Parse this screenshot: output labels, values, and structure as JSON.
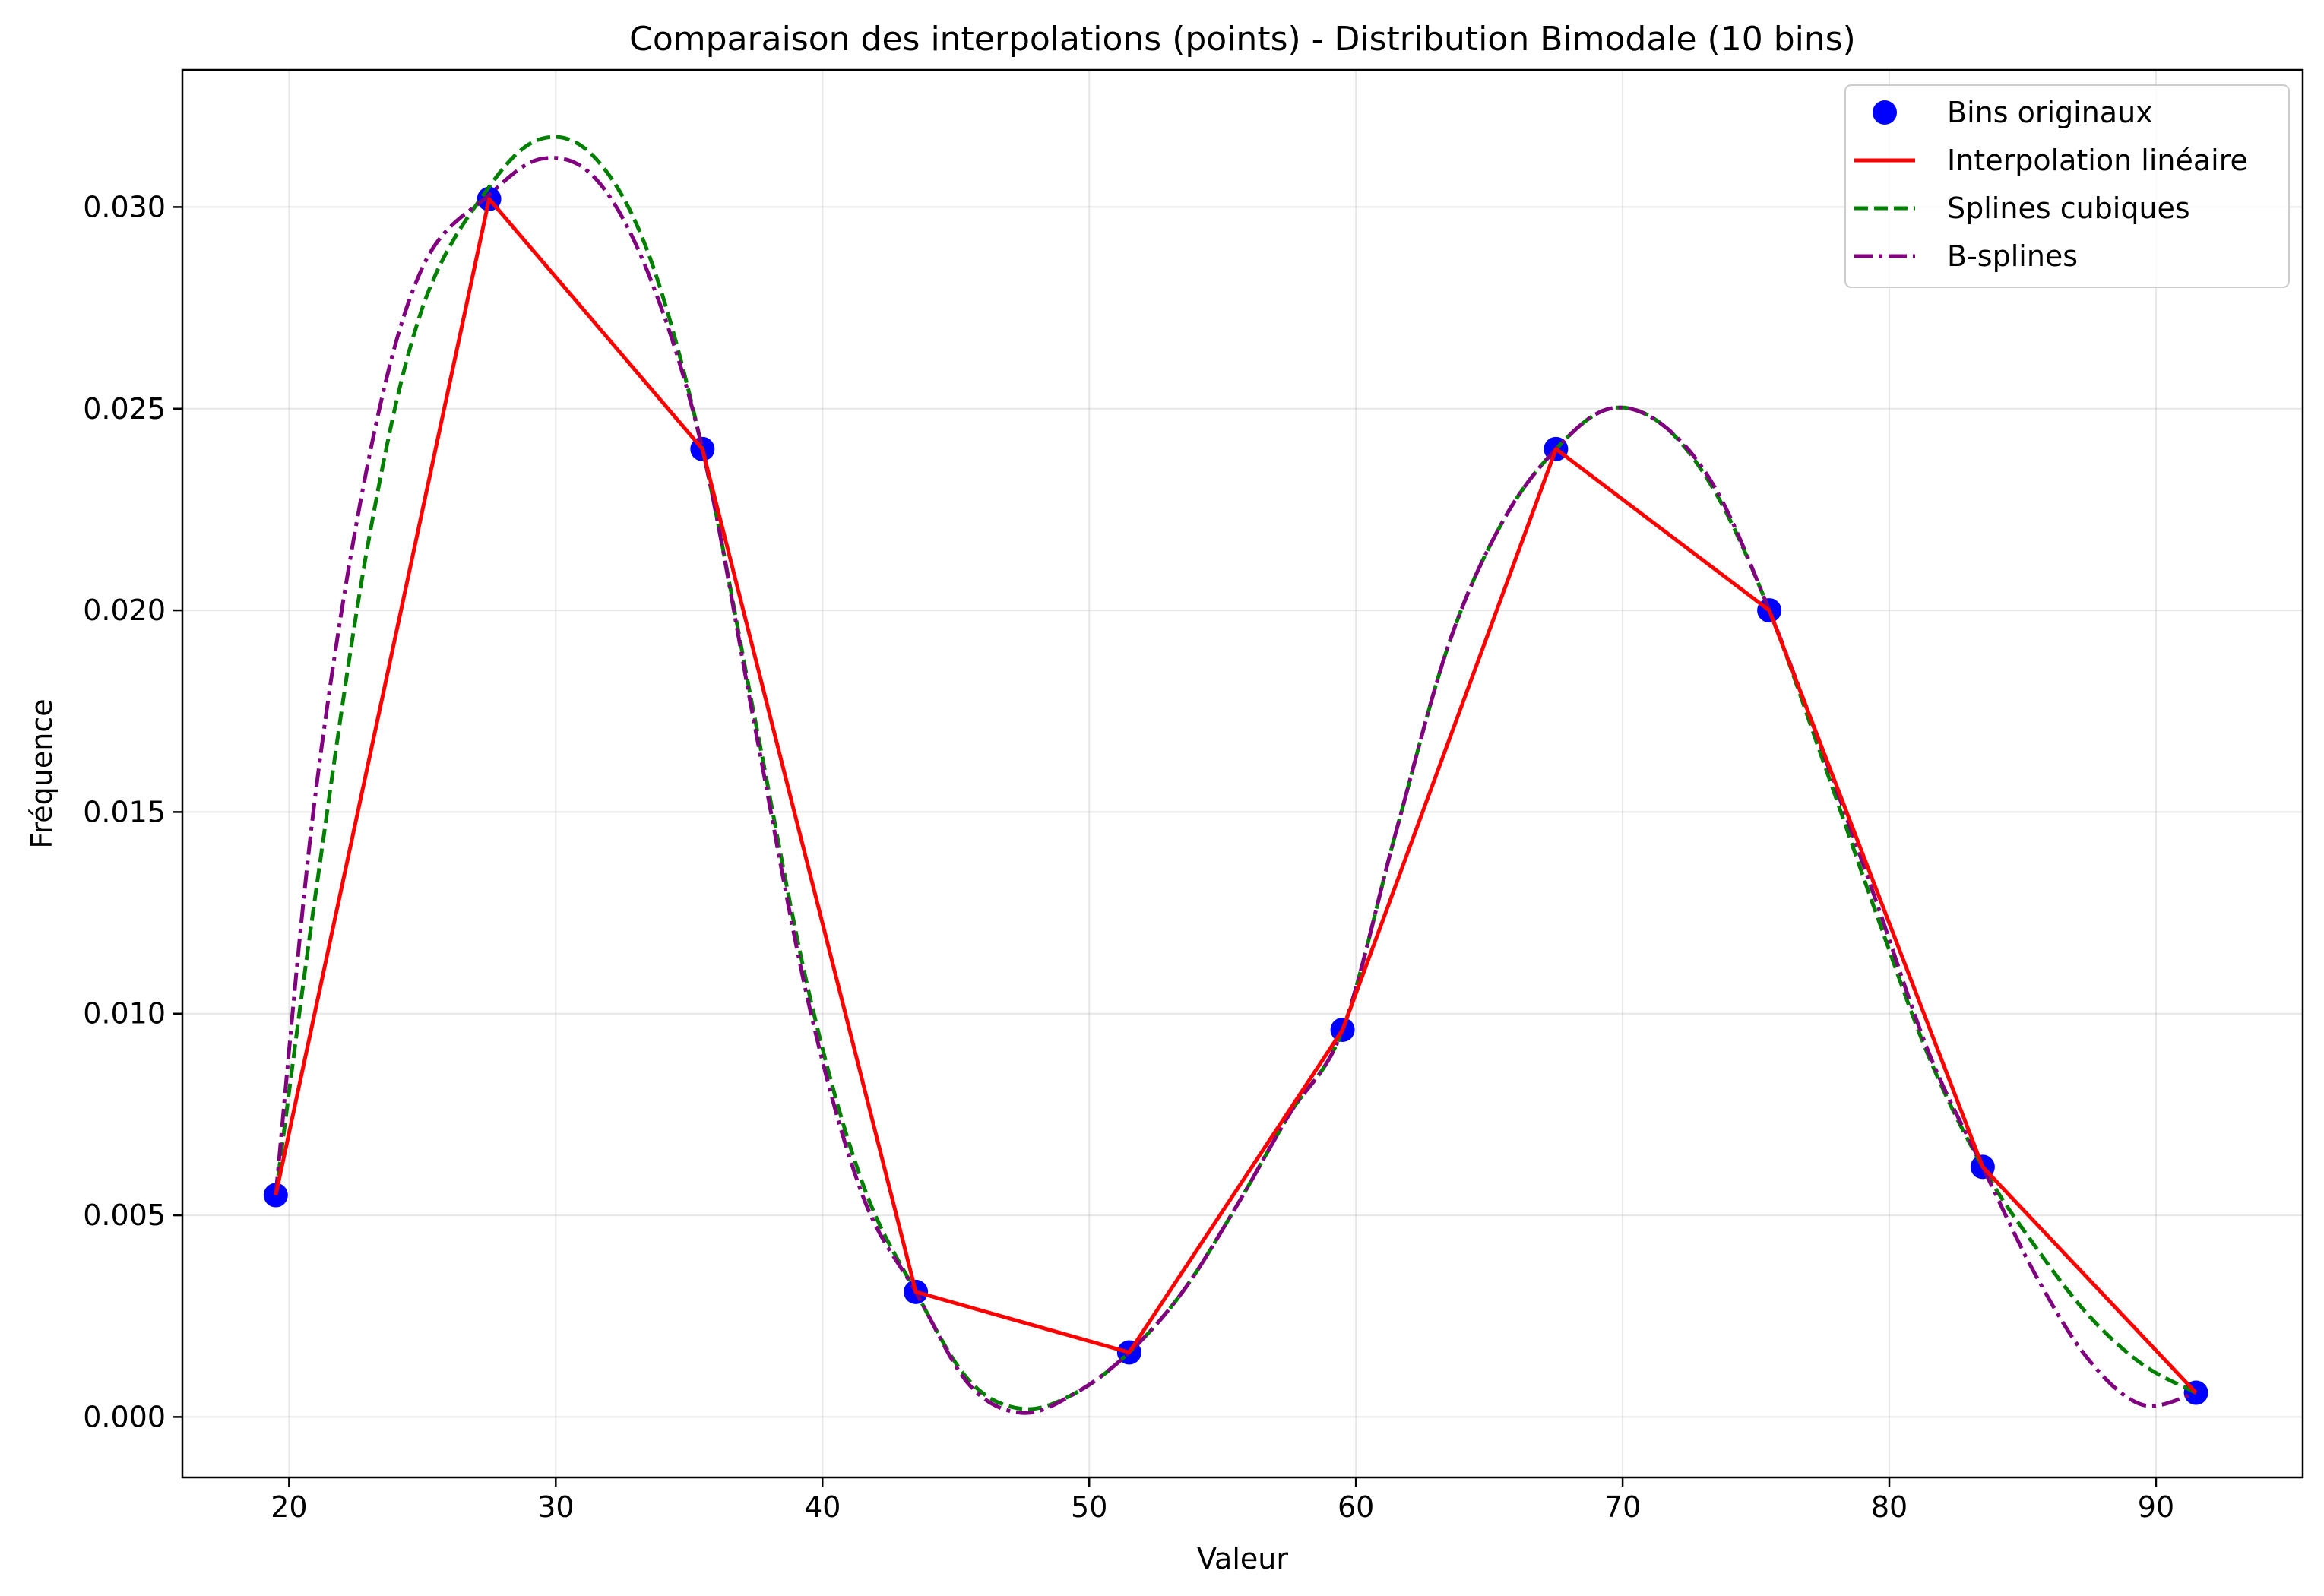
{
  "chart_data": {
    "type": "line",
    "title": "Comparaison des interpolations (points) - Distribution Bimodale (10 bins)",
    "xlabel": "Valeur",
    "ylabel": "Fréquence",
    "xlim": [
      16,
      95.5
    ],
    "ylim": [
      -0.0015,
      0.0334
    ],
    "xticks": [
      20,
      30,
      40,
      50,
      60,
      70,
      80,
      90
    ],
    "yticks": [
      0.0,
      0.005,
      0.01,
      0.015,
      0.02,
      0.025,
      0.03
    ],
    "ytick_labels": [
      "0.000",
      "0.005",
      "0.010",
      "0.015",
      "0.020",
      "0.025",
      "0.030"
    ],
    "grid": true,
    "legend_position": "top-right",
    "series": [
      {
        "name": "Bins originaux",
        "kind": "points",
        "color": "#0000ff",
        "x": [
          19.5,
          27.5,
          35.5,
          43.5,
          51.5,
          59.5,
          67.5,
          75.5,
          83.5,
          91.5
        ],
        "y": [
          0.0055,
          0.0302,
          0.024,
          0.0031,
          0.0016,
          0.0096,
          0.024,
          0.02,
          0.0062,
          0.0006
        ]
      },
      {
        "name": "Interpolation linéaire",
        "kind": "line",
        "style": "solid",
        "color": "#ff0000",
        "x": [
          19.5,
          27.5,
          35.5,
          43.5,
          51.5,
          59.5,
          67.5,
          75.5,
          83.5,
          91.5
        ],
        "y": [
          0.0055,
          0.0302,
          0.024,
          0.0031,
          0.0016,
          0.0096,
          0.024,
          0.02,
          0.0062,
          0.0006
        ]
      },
      {
        "name": "Splines cubiques",
        "kind": "line",
        "style": "dashed",
        "color": "#008000",
        "x": [
          19.5,
          21,
          23,
          25,
          27.5,
          29.5,
          31.5,
          33.5,
          35.5,
          37.5,
          39.5,
          41.5,
          43.5,
          45.5,
          47.5,
          49.5,
          51.5,
          53.5,
          55.5,
          57.5,
          59.5,
          61.5,
          63.5,
          65.5,
          67.5,
          69.5,
          71.5,
          73.5,
          75.5,
          77.5,
          79.5,
          81.5,
          83.5,
          85.5,
          87.5,
          89.5,
          91.5
        ],
        "y": [
          0.0055,
          0.013,
          0.0218,
          0.0275,
          0.0305,
          0.0317,
          0.0312,
          0.0288,
          0.024,
          0.0172,
          0.0105,
          0.0058,
          0.0031,
          0.0009,
          0.0002,
          0.0006,
          0.0016,
          0.0031,
          0.0052,
          0.0075,
          0.0096,
          0.0145,
          0.0192,
          0.0222,
          0.024,
          0.025,
          0.0246,
          0.0229,
          0.02,
          0.0163,
          0.0125,
          0.0089,
          0.0062,
          0.0042,
          0.0025,
          0.0013,
          0.0006
        ]
      },
      {
        "name": "B-splines",
        "kind": "line",
        "style": "dashdot",
        "color": "#800080",
        "x": [
          19.5,
          21,
          23,
          25,
          27.5,
          29.5,
          31.5,
          33.5,
          35.5,
          37.5,
          39.5,
          41.5,
          43.5,
          45.5,
          47.5,
          49.5,
          51.5,
          53.5,
          55.5,
          57.5,
          59.5,
          61.5,
          63.5,
          65.5,
          67.5,
          69.5,
          71.5,
          73.5,
          75.5,
          77.5,
          79.5,
          81.5,
          83.5,
          85.5,
          87.5,
          89.5,
          91.5
        ],
        "y": [
          0.0055,
          0.0155,
          0.0238,
          0.0285,
          0.0303,
          0.0312,
          0.0307,
          0.0283,
          0.024,
          0.017,
          0.0102,
          0.0055,
          0.0031,
          0.0008,
          0.0001,
          0.0006,
          0.0016,
          0.0031,
          0.0052,
          0.0075,
          0.0096,
          0.0145,
          0.0192,
          0.0222,
          0.024,
          0.025,
          0.0246,
          0.023,
          0.02,
          0.0165,
          0.0128,
          0.009,
          0.0062,
          0.0035,
          0.0014,
          0.0003,
          0.0006
        ]
      }
    ]
  }
}
